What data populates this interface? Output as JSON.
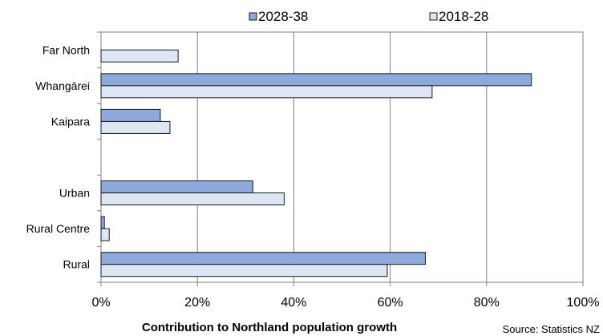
{
  "chart_data": {
    "type": "bar",
    "orientation": "horizontal",
    "categories": [
      "Far North",
      "Whangārei",
      "Kaipara",
      "",
      "Urban",
      "Rural Centre",
      "Rural"
    ],
    "series": [
      {
        "name": "2028-38",
        "color": "#8EA9DB",
        "values": [
          null,
          89.3,
          12.3,
          null,
          31.5,
          0.7,
          67.3
        ]
      },
      {
        "name": "2018-28",
        "color": "#DCE6F4",
        "values": [
          16.0,
          68.7,
          14.3,
          null,
          38.0,
          1.7,
          59.4
        ]
      }
    ],
    "xlabel": "Contribution to Northland population growth",
    "xlim": [
      0,
      100
    ],
    "x_ticks": [
      "0%",
      "20%",
      "40%",
      "60%",
      "80%",
      "100%"
    ],
    "grid": "vertical",
    "legend_position": "top",
    "source": "Source: Statistics NZ"
  }
}
